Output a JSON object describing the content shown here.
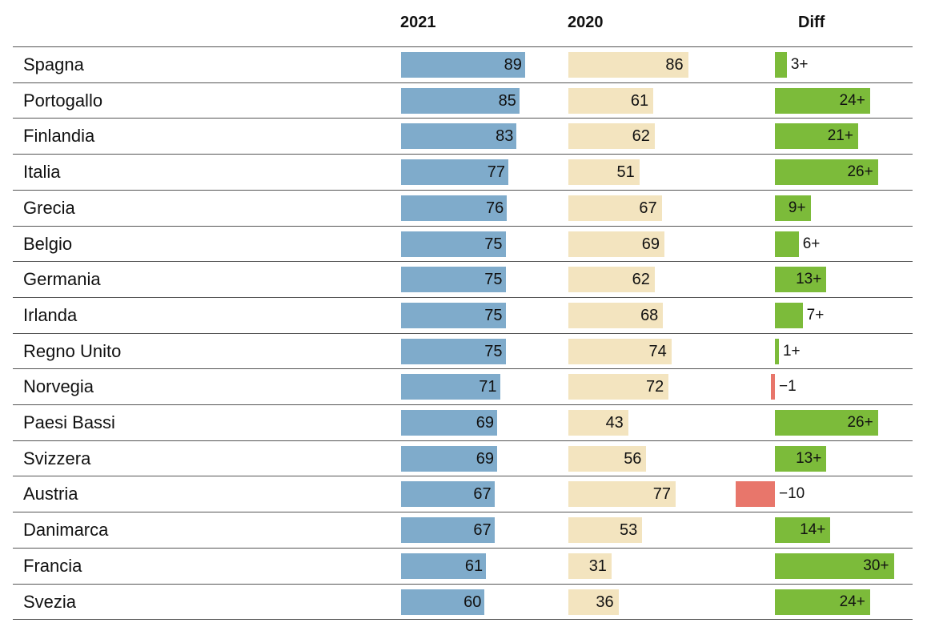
{
  "chart_data": {
    "type": "bar",
    "columns": [
      "2021",
      "2020",
      "Diff"
    ],
    "categories": [
      "Spagna",
      "Portogallo",
      "Finlandia",
      "Italia",
      "Grecia",
      "Belgio",
      "Germania",
      "Irlanda",
      "Regno Unito",
      "Norvegia",
      "Paesi Bassi",
      "Svizzera",
      "Austria",
      "Danimarca",
      "Francia",
      "Svezia"
    ],
    "series": [
      {
        "name": "2021",
        "values": [
          89,
          85,
          83,
          77,
          76,
          75,
          75,
          75,
          75,
          71,
          69,
          69,
          67,
          67,
          61,
          60
        ]
      },
      {
        "name": "2020",
        "values": [
          86,
          61,
          62,
          51,
          67,
          69,
          62,
          68,
          74,
          72,
          43,
          56,
          77,
          53,
          31,
          36
        ]
      },
      {
        "name": "Diff",
        "values": [
          3,
          24,
          21,
          26,
          9,
          6,
          13,
          7,
          1,
          -1,
          26,
          13,
          -10,
          14,
          30,
          24
        ],
        "labels": [
          "3+",
          "24+",
          "21+",
          "26+",
          "9+",
          "6+",
          "13+",
          "7+",
          "1+",
          "−1",
          "26+",
          "13+",
          "−10",
          "14+",
          "30+",
          "24+"
        ]
      }
    ],
    "colors": {
      "2021": "#7fabcb",
      "2020": "#f3e4bf",
      "diff_positive": "#7cbb3a",
      "diff_negative": "#e8766b"
    },
    "grid": false,
    "legend": "none"
  }
}
